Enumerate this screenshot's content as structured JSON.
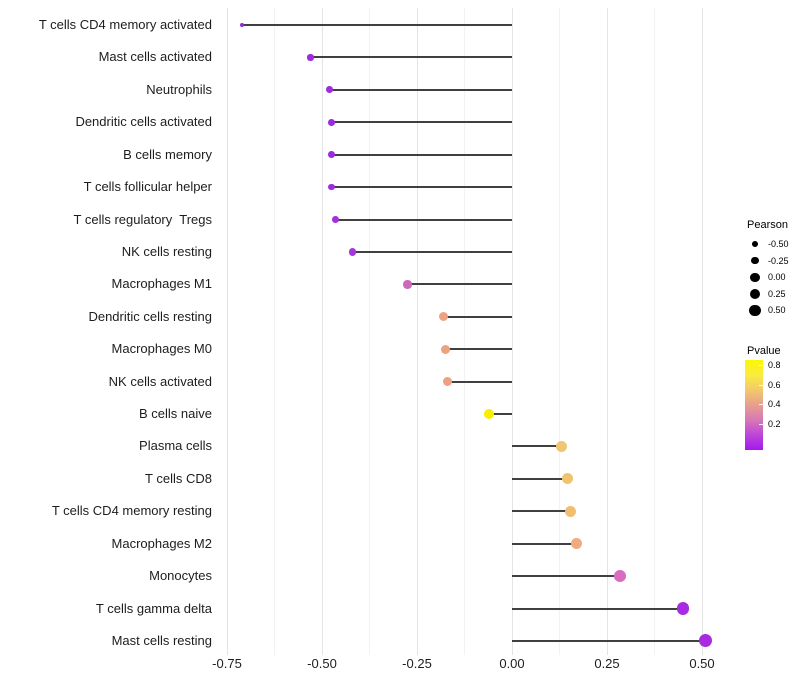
{
  "chart_data": {
    "type": "lollipop",
    "title": "",
    "xlabel": "",
    "ylabel": "",
    "xlim": [
      -0.77,
      0.57
    ],
    "grid": "vertical-only, major and minor light gray on white",
    "x_ticks": [
      {
        "label": "-0.75",
        "value": -0.75
      },
      {
        "label": "-0.50",
        "value": -0.5
      },
      {
        "label": "-0.25",
        "value": -0.25
      },
      {
        "label": "0.00",
        "value": 0
      },
      {
        "label": "0.25",
        "value": 0.25
      },
      {
        "label": "0.50",
        "value": 0.5
      }
    ],
    "minor_ticks": [
      -0.625,
      -0.375,
      -0.125,
      0.125,
      0.375
    ],
    "rows": [
      {
        "label": "T cells CD4 memory activated",
        "pearson": -0.71,
        "color": "#9629DA"
      },
      {
        "label": "Mast cells activated",
        "pearson": -0.53,
        "color": "#9D2CDE"
      },
      {
        "label": "Neutrophils",
        "pearson": -0.48,
        "color": "#9D2CDE"
      },
      {
        "label": "Dendritic cells activated",
        "pearson": -0.475,
        "color": "#9D2CDE"
      },
      {
        "label": "B cells memory",
        "pearson": -0.475,
        "color": "#9D2CDE"
      },
      {
        "label": "T cells follicular helper",
        "pearson": -0.475,
        "color": "#9E2EDD"
      },
      {
        "label": "T cells regulatory  Tregs",
        "pearson": -0.465,
        "color": "#A131DC"
      },
      {
        "label": "NK cells resting",
        "pearson": -0.42,
        "color": "#A637DB"
      },
      {
        "label": "Macrophages M1",
        "pearson": -0.275,
        "color": "#CE68BA"
      },
      {
        "label": "Dendritic cells resting",
        "pearson": -0.18,
        "color": "#EDA382"
      },
      {
        "label": "Macrophages M0",
        "pearson": -0.175,
        "color": "#EDA17F"
      },
      {
        "label": "NK cells activated",
        "pearson": -0.17,
        "color": "#EDA180"
      },
      {
        "label": "B cells naive",
        "pearson": -0.06,
        "color": "#F7EE00"
      },
      {
        "label": "Plasma cells",
        "pearson": 0.13,
        "color": "#F0C573"
      },
      {
        "label": "T cells CD8",
        "pearson": 0.145,
        "color": "#F0C36F"
      },
      {
        "label": "T cells CD4 memory resting",
        "pearson": 0.155,
        "color": "#F0BE72"
      },
      {
        "label": "Macrophages M2",
        "pearson": 0.17,
        "color": "#EEAC80"
      },
      {
        "label": "Monocytes",
        "pearson": 0.285,
        "color": "#D86CC0"
      },
      {
        "label": "T cells gamma delta",
        "pearson": 0.45,
        "color": "#A72BE1"
      },
      {
        "label": "Mast cells resting",
        "pearson": 0.51,
        "color": "#A82BE2"
      }
    ],
    "legend_size": {
      "title": "Pearson",
      "entries": [
        {
          "label": "-0.50",
          "value": -0.5
        },
        {
          "label": "-0.25",
          "value": -0.25
        },
        {
          "label": "0.00",
          "value": 0
        },
        {
          "label": "0.25",
          "value": 0.25
        },
        {
          "label": "0.50",
          "value": 0.5
        }
      ]
    },
    "legend_color": {
      "title": "Pvalue",
      "ticks": [
        {
          "label": "0.8",
          "value": 0.8
        },
        {
          "label": "0.6",
          "value": 0.6
        },
        {
          "label": "0.4",
          "value": 0.4
        },
        {
          "label": "0.2",
          "value": 0.2
        }
      ],
      "gradient_bottom_to_top": [
        "#A318EE",
        "#BC46D9",
        "#D678B7",
        "#E89E8E",
        "#F2C96C",
        "#FAEC3E",
        "#FCF704"
      ]
    }
  }
}
